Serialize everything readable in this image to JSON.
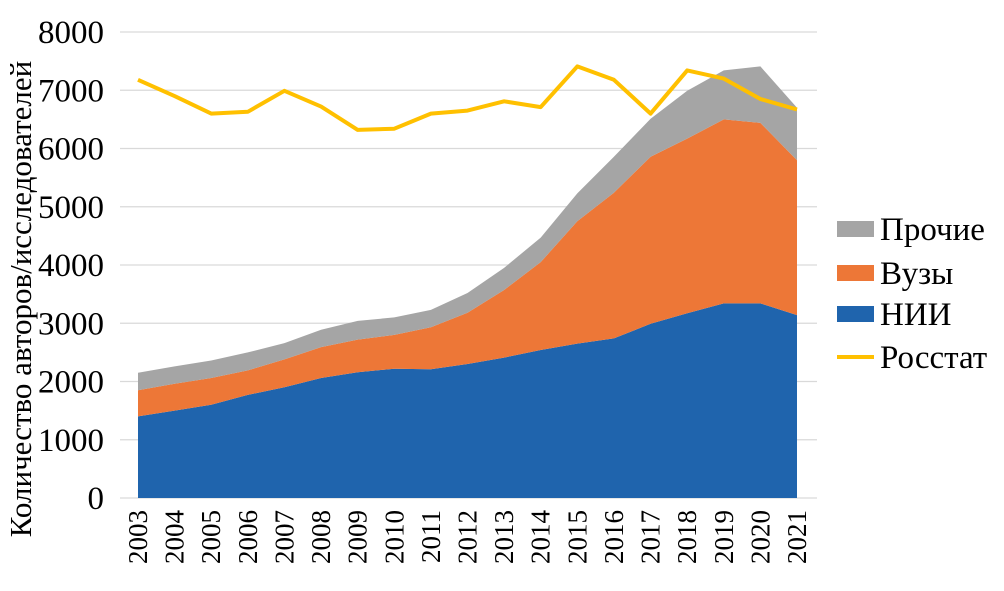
{
  "chart_data": {
    "type": "area",
    "ylabel": "Количество авторов/исследователей",
    "xlabel": "",
    "ylim": [
      0,
      8000
    ],
    "yticks": [
      "0",
      "1000",
      "2000",
      "3000",
      "4000",
      "5000",
      "6000",
      "7000",
      "8000"
    ],
    "categories": [
      "2003",
      "2004",
      "2005",
      "2006",
      "2007",
      "2008",
      "2009",
      "2010",
      "2011",
      "2012",
      "2013",
      "2014",
      "2015",
      "2016",
      "2017",
      "2018",
      "2019",
      "2020",
      "2021"
    ],
    "stacked_series": [
      {
        "name": "НИИ",
        "color": "#1f64ad",
        "values": [
          1400,
          1500,
          1600,
          1770,
          1900,
          2060,
          2160,
          2220,
          2210,
          2300,
          2410,
          2540,
          2650,
          2740,
          2990,
          3170,
          3340,
          3340,
          3140
        ]
      },
      {
        "name": "Вузы",
        "color": "#ed7737",
        "values": [
          450,
          460,
          460,
          420,
          480,
          530,
          560,
          580,
          720,
          880,
          1160,
          1510,
          2100,
          2500,
          2870,
          3000,
          3160,
          3100,
          2660
        ]
      },
      {
        "name": "Прочие",
        "color": "#a5a5a5",
        "values": [
          300,
          300,
          300,
          310,
          280,
          300,
          320,
          300,
          300,
          340,
          380,
          420,
          480,
          620,
          650,
          820,
          840,
          970,
          900
        ]
      }
    ],
    "line_series": [
      {
        "name": "Росстат",
        "color": "#ffc000",
        "values": [
          7180,
          6900,
          6600,
          6630,
          6990,
          6720,
          6320,
          6340,
          6600,
          6650,
          6810,
          6710,
          7410,
          7180,
          6600,
          7340,
          7200,
          6850,
          6670
        ]
      }
    ],
    "legend": {
      "position": "right",
      "items": [
        {
          "name": "Прочие",
          "color": "#a5a5a5",
          "kind": "box"
        },
        {
          "name": "Вузы",
          "color": "#ed7737",
          "kind": "box"
        },
        {
          "name": "НИИ",
          "color": "#1f64ad",
          "kind": "box"
        },
        {
          "name": "Росстат",
          "color": "#ffc000",
          "kind": "line"
        }
      ]
    },
    "grid": true
  }
}
